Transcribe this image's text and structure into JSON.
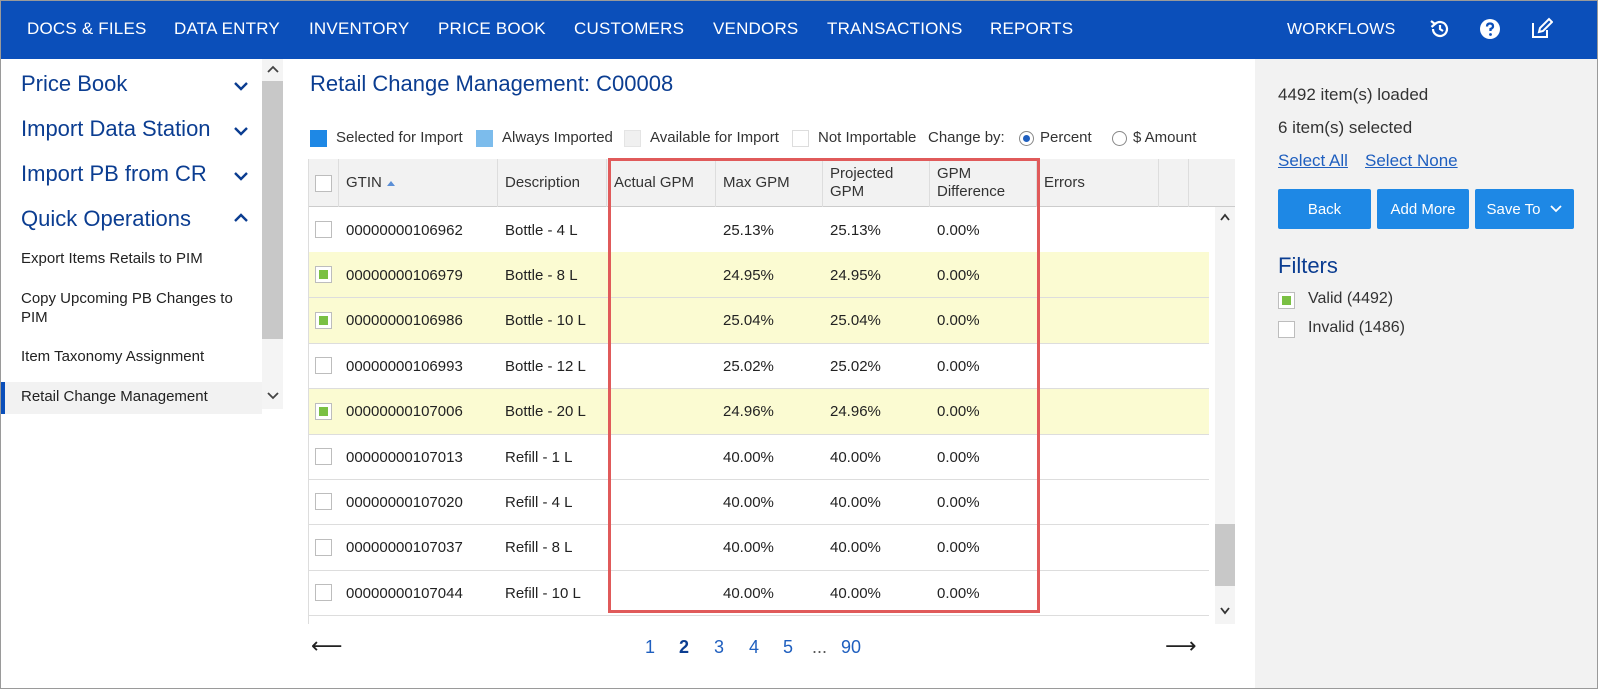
{
  "nav": {
    "items": [
      "DOCS & FILES",
      "DATA ENTRY",
      "INVENTORY",
      "PRICE BOOK",
      "CUSTOMERS",
      "VENDORS",
      "TRANSACTIONS",
      "REPORTS"
    ],
    "workflows": "WORKFLOWS",
    "icons": [
      "history-icon",
      "help-icon",
      "edit-icon"
    ]
  },
  "sidebar": {
    "sections": [
      "Price Book",
      "Import Data Station",
      "Import PB from CR",
      "Quick Operations"
    ],
    "items": [
      "Export Items Retails to PIM",
      "Copy Upcoming PB Changes to PIM",
      "Item Taxonomy Assignment",
      "Retail Change Management"
    ],
    "active": "Retail Change Management"
  },
  "main": {
    "title": "Retail Change Management: C00008",
    "legend": {
      "selected": "Selected for Import",
      "always": "Always Imported",
      "available": "Available for Import",
      "not": "Not Importable",
      "change_by": "Change by:",
      "percent": "Percent",
      "amount": "$ Amount",
      "colors": {
        "selected": "#1e88e5",
        "always": "#7cbcec",
        "available": "#f0f0f0",
        "not": "#ffffff"
      }
    },
    "columns": {
      "gtin": "GTIN",
      "description": "Description",
      "actual_gpm": "Actual GPM",
      "max_gpm": "Max GPM",
      "projected_gpm": "Projected GPM",
      "gpm_difference": "GPM Difference",
      "errors": "Errors"
    },
    "rows": [
      {
        "gtin": "00000000106962",
        "description": "Bottle - 4 L",
        "actual": "",
        "max": "25.13%",
        "projected": "25.13%",
        "diff": "0.00%",
        "selected": false
      },
      {
        "gtin": "00000000106979",
        "description": "Bottle - 8 L",
        "actual": "",
        "max": "24.95%",
        "projected": "24.95%",
        "diff": "0.00%",
        "selected": true
      },
      {
        "gtin": "00000000106986",
        "description": "Bottle - 10 L",
        "actual": "",
        "max": "25.04%",
        "projected": "25.04%",
        "diff": "0.00%",
        "selected": true
      },
      {
        "gtin": "00000000106993",
        "description": "Bottle - 12 L",
        "actual": "",
        "max": "25.02%",
        "projected": "25.02%",
        "diff": "0.00%",
        "selected": false
      },
      {
        "gtin": "00000000107006",
        "description": "Bottle - 20 L",
        "actual": "",
        "max": "24.96%",
        "projected": "24.96%",
        "diff": "0.00%",
        "selected": true
      },
      {
        "gtin": "00000000107013",
        "description": "Refill - 1 L",
        "actual": "",
        "max": "40.00%",
        "projected": "40.00%",
        "diff": "0.00%",
        "selected": false
      },
      {
        "gtin": "00000000107020",
        "description": "Refill - 4 L",
        "actual": "",
        "max": "40.00%",
        "projected": "40.00%",
        "diff": "0.00%",
        "selected": false
      },
      {
        "gtin": "00000000107037",
        "description": "Refill - 8 L",
        "actual": "",
        "max": "40.00%",
        "projected": "40.00%",
        "diff": "0.00%",
        "selected": false
      },
      {
        "gtin": "00000000107044",
        "description": "Refill - 10 L",
        "actual": "",
        "max": "40.00%",
        "projected": "40.00%",
        "diff": "0.00%",
        "selected": false
      }
    ],
    "pager": {
      "prev": "⟵",
      "pages": [
        "1",
        "2",
        "3",
        "4",
        "5",
        "...",
        "90"
      ],
      "current": "2",
      "next": "⟶"
    }
  },
  "right": {
    "loaded": "4492 item(s) loaded",
    "selected": "6 item(s) selected",
    "select_all": "Select All",
    "select_none": "Select None",
    "back": "Back",
    "add_more": "Add More",
    "save_to": "Save To",
    "filters_title": "Filters",
    "filters": [
      {
        "label": "Valid (4492)",
        "checked": true
      },
      {
        "label": "Invalid (1486)",
        "checked": false
      }
    ]
  }
}
